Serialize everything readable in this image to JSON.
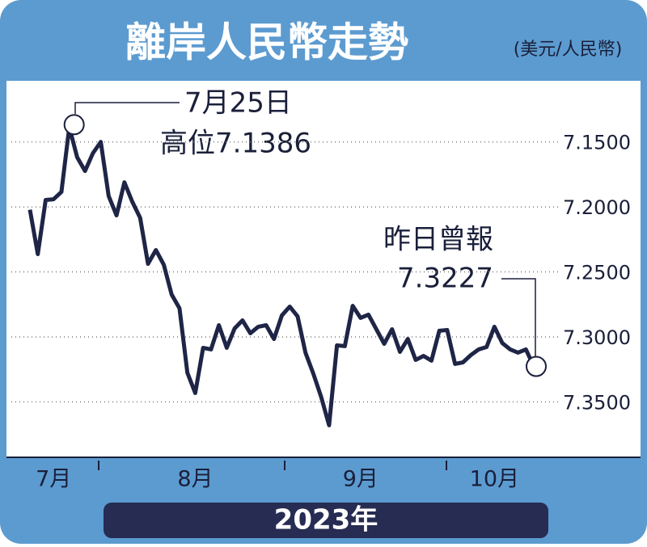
{
  "chart_data": {
    "type": "line",
    "title": "離岸人民幣走勢",
    "unit_label": "(美元/人民幣)",
    "x_label": "2023年",
    "categories": [
      null,
      null,
      null,
      "7月",
      null,
      null,
      null,
      null,
      null,
      null,
      null,
      null,
      null,
      null,
      null,
      null,
      null,
      null,
      null,
      null,
      null,
      "8月",
      null,
      null,
      null,
      null,
      null,
      null,
      null,
      null,
      null,
      null,
      null,
      null,
      null,
      null,
      null,
      null,
      null,
      null,
      null,
      null,
      "9月",
      null,
      null,
      null,
      null,
      null,
      null,
      null,
      null,
      null,
      null,
      null,
      null,
      null,
      null,
      null,
      null,
      "10月",
      null,
      null,
      null,
      null,
      null
    ],
    "series": [
      {
        "name": "離岸人民幣",
        "color": "#1f2546",
        "values": [
          7.2022,
          7.2363,
          7.1947,
          7.1941,
          7.1885,
          7.1386,
          7.1618,
          7.1724,
          7.1587,
          7.15,
          7.1916,
          7.2065,
          7.1811,
          7.196,
          7.2084,
          7.2438,
          7.2332,
          7.2444,
          7.2674,
          7.278,
          7.3276,
          7.3432,
          7.3084,
          7.3096,
          7.291,
          7.3084,
          7.2935,
          7.2873,
          7.2972,
          7.2922,
          7.291,
          7.3016,
          7.2835,
          7.2767,
          7.2842,
          7.3121,
          7.3283,
          7.3463,
          7.368,
          7.3065,
          7.3071,
          7.2761,
          7.2854,
          7.2829,
          7.2941,
          7.3053,
          7.2941,
          7.3115,
          7.3016,
          7.3177,
          7.3146,
          7.3183,
          7.2953,
          7.2947,
          7.3208,
          7.3196,
          7.314,
          7.3096,
          7.3078,
          7.2922,
          7.3047,
          7.3096,
          7.3121,
          7.3096,
          7.3227
        ]
      }
    ],
    "ylim": [
      7.103,
      7.392
    ],
    "y_inverted": true,
    "yticks": [
      {
        "value": 7.15,
        "label": "7.1500"
      },
      {
        "value": 7.2,
        "label": "7.2000"
      },
      {
        "value": 7.25,
        "label": "7.2500"
      },
      {
        "value": 7.3,
        "label": "7.3000"
      },
      {
        "value": 7.35,
        "label": "7.3500"
      }
    ],
    "grid": true,
    "annotations": [
      {
        "lines": [
          "7月25日",
          "高位7.1386"
        ]
      },
      {
        "lines": [
          "昨日曾報",
          "7.3227"
        ]
      }
    ]
  }
}
